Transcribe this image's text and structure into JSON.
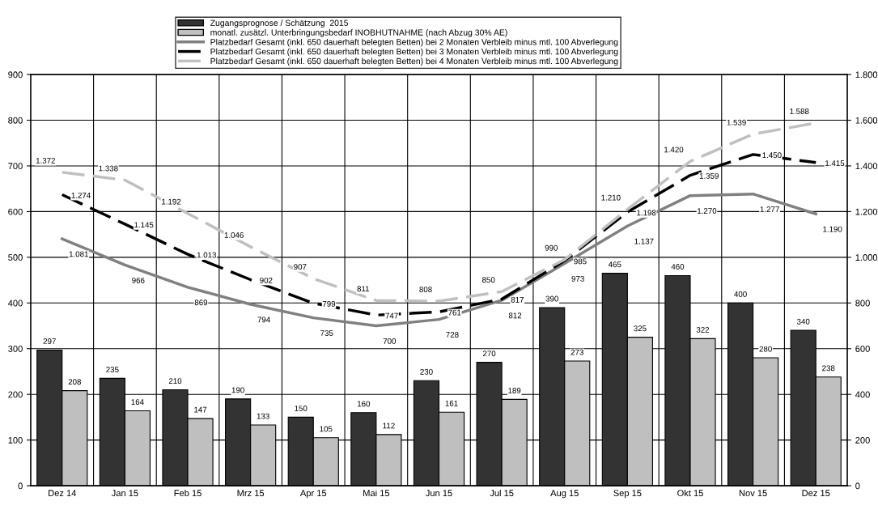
{
  "chart_data": {
    "type": "bar",
    "categories": [
      "Dez 14",
      "Jan 15",
      "Feb 15",
      "Mrz 15",
      "Apr 15",
      "Mai 15",
      "Jun 15",
      "Jul 15",
      "Aug 15",
      "Sep 15",
      "Okt 15",
      "Nov 15",
      "Dez 15"
    ],
    "series": [
      {
        "name": "Zugangsprognose / Schätzung  2015",
        "color": "#333333",
        "values": [
          297,
          235,
          210,
          190,
          150,
          160,
          230,
          270,
          390,
          465,
          460,
          400,
          340
        ],
        "value_labels": [
          "297",
          "235",
          "210",
          "190",
          "150",
          "160",
          "230",
          "270",
          "390",
          "465",
          "460",
          "400",
          "340"
        ]
      },
      {
        "name": "monatl. zusätzl. Unterbringungsbedarf INOBHUTNAHME (nach Abzug 30% AE)",
        "color": "#bfbfbf",
        "values": [
          208,
          164,
          147,
          133,
          105,
          112,
          161,
          189,
          273,
          325,
          322,
          280,
          238
        ],
        "value_labels": [
          "208",
          "164",
          "147",
          "133",
          "105",
          "112",
          "161",
          "189",
          "273",
          "325",
          "322",
          "280",
          "238"
        ]
      },
      {
        "name": "Platzbedarf Gesamt (inkl. 650 dauerhaft belegten Betten) bei 2 Monaten Verbleib minus mtl. 100 Abverlegung",
        "type": "line",
        "axis": "y2",
        "color": "#808080",
        "line_style": "solid",
        "values": [
          1081,
          966,
          869,
          794,
          735,
          700,
          728,
          812,
          973,
          1137,
          1270,
          1277,
          1190
        ],
        "value_labels": [
          "1.081",
          "966",
          "869",
          "794",
          "735",
          "700",
          "728",
          "812",
          "973",
          "1.137",
          "1.270",
          "1.277",
          "1.190"
        ]
      },
      {
        "name": "Platzbedarf Gesamt (inkl. 650 dauerhaft belegten Betten) bei 3 Monaten Verbleib minus mtl. 100 Abverlegung",
        "type": "line",
        "axis": "y2",
        "color": "#000000",
        "line_style": "dashed",
        "values": [
          1274,
          1145,
          1013,
          902,
          799,
          747,
          761,
          817,
          985,
          1198,
          1359,
          1450,
          1415
        ],
        "value_labels": [
          "1.274",
          "1.145",
          "1.013",
          "902",
          "799",
          "747",
          "761",
          "817",
          "985",
          "1.198",
          "1.359",
          "1.450",
          "1.415"
        ]
      },
      {
        "name": "Platzbedarf Gesamt (inkl. 650 dauerhaft belegten Betten) bei 4 Monaten Verbleib minus mtl. 100 Abverlegung",
        "type": "line",
        "axis": "y2",
        "color": "#c0c0c0",
        "line_style": "dashed",
        "values": [
          1372,
          1338,
          1192,
          1046,
          907,
          811,
          808,
          850,
          990,
          1210,
          1420,
          1539,
          1588
        ],
        "value_labels": [
          "1.372",
          "1.338",
          "1.192",
          "1.046",
          "907",
          "811",
          "808",
          "850",
          "990",
          "1.210",
          "1.420",
          "1.539",
          "1.588"
        ]
      }
    ],
    "ylim": [
      0,
      900
    ],
    "yticks": [
      0,
      100,
      200,
      300,
      400,
      500,
      600,
      700,
      800,
      900
    ],
    "y2lim": [
      0,
      1800
    ],
    "y2ticks": [
      0,
      {
        "value": 200,
        "label": "200"
      },
      {
        "value": 400,
        "label": "400"
      },
      {
        "value": 600,
        "label": "600"
      },
      {
        "value": 800,
        "label": "800"
      },
      {
        "value": 1000,
        "label": "1.000"
      },
      {
        "value": 1200,
        "label": "1.200"
      },
      {
        "value": 1400,
        "label": "1.400"
      },
      {
        "value": 1600,
        "label": "1.600"
      },
      {
        "value": 1800,
        "label": "1.800"
      }
    ],
    "grid": true,
    "legend": "top"
  }
}
